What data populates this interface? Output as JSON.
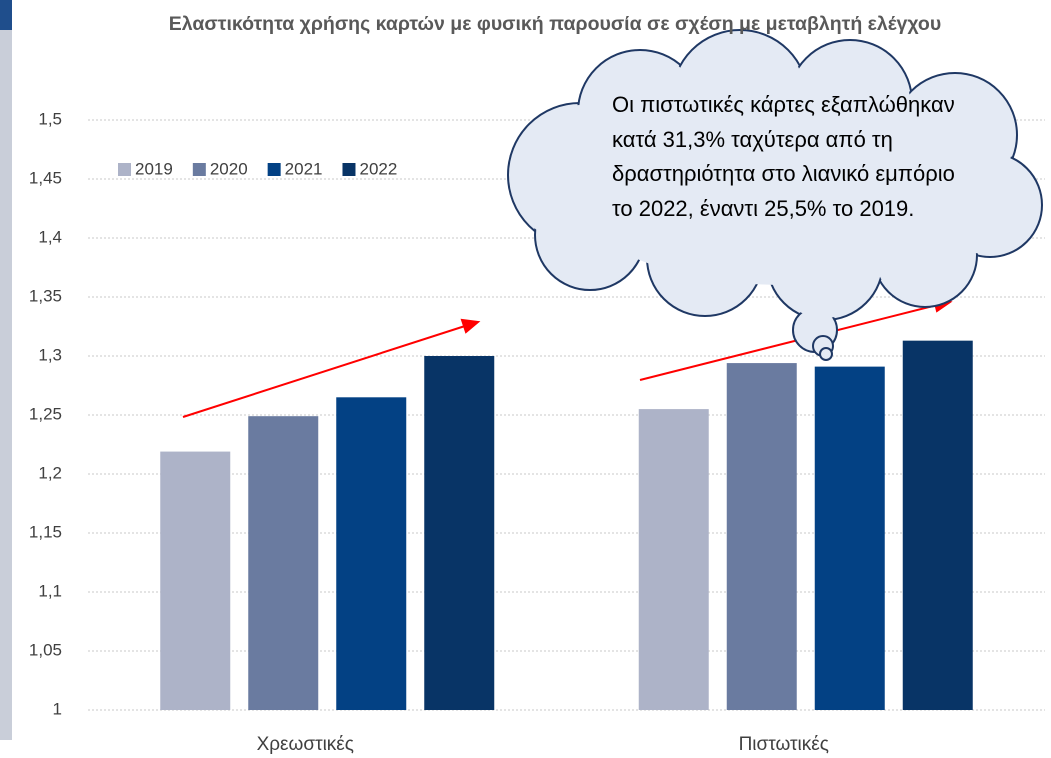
{
  "chart_data": {
    "type": "bar",
    "title": "Ελαστικότητα χρήσης καρτών με φυσική παρουσία σε σχέση με μεταβλητή ελέγχου",
    "categories": [
      "Χρεωστικές",
      "Πιστωτικές"
    ],
    "series": [
      {
        "name": "2019",
        "color": "#adb3c8",
        "values": [
          1.219,
          1.255
        ]
      },
      {
        "name": "2020",
        "color": "#6a7ba0",
        "values": [
          1.249,
          1.294
        ]
      },
      {
        "name": "2021",
        "color": "#034184",
        "values": [
          1.265,
          1.291
        ]
      },
      {
        "name": "2022",
        "color": "#083466",
        "values": [
          1.3,
          1.313
        ]
      }
    ],
    "ylim": [
      1,
      1.5
    ],
    "yticks": [
      1,
      {
        "value": 1.05,
        "label": "1,05"
      },
      {
        "value": 1.1,
        "label": "1,1"
      },
      {
        "value": 1.15,
        "label": "1,15"
      },
      {
        "value": 1.2,
        "label": "1,2"
      },
      {
        "value": 1.25,
        "label": "1,25"
      },
      {
        "value": 1.3,
        "label": "1,3"
      },
      {
        "value": 1.35,
        "label": "1,35"
      },
      {
        "value": 1.4,
        "label": "1,4"
      },
      {
        "value": 1.45,
        "label": "1,45"
      },
      {
        "value": 1.5,
        "label": "1,5"
      }
    ],
    "grid": true,
    "legend": "top-left",
    "annotation": "Οι πιστωτικές κάρτες εξαπλώθηκαν κατά 31,3% ταχύτερα από τη δραστηριότητα στο λιανικό εμπόριο το 2022, έναντι 25,5% το 2019."
  }
}
